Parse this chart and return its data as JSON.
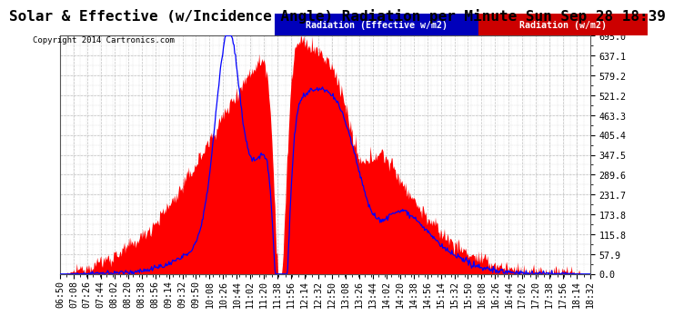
{
  "title": "Solar & Effective (w/Incidence Angle) Radiation per Minute Sun Sep 28 18:39",
  "copyright": "Copyright 2014 Cartronics.com",
  "legend_label1": "Radiation (Effective w/m2)",
  "legend_label2": "Radiation (w/m2)",
  "legend_bg1": "#0000bb",
  "legend_bg2": "#cc0000",
  "ylim": [
    0.0,
    695.0
  ],
  "yticks": [
    0.0,
    57.9,
    115.8,
    173.8,
    231.7,
    289.6,
    347.5,
    405.4,
    463.3,
    521.2,
    579.2,
    637.1,
    695.0
  ],
  "background_color": "#ffffff",
  "plot_bg_color": "#ffffff",
  "grid_color": "#bbbbbb",
  "fill_color": "#ff0000",
  "line_color": "#0000ff",
  "title_fontsize": 11.5,
  "tick_fontsize": 7.2,
  "xtick_labels": [
    "06:50",
    "07:08",
    "07:26",
    "07:44",
    "08:02",
    "08:20",
    "08:38",
    "08:56",
    "09:14",
    "09:32",
    "09:50",
    "10:08",
    "10:26",
    "10:44",
    "11:02",
    "11:20",
    "11:38",
    "11:56",
    "12:14",
    "12:32",
    "12:50",
    "13:08",
    "13:26",
    "13:44",
    "14:02",
    "14:20",
    "14:38",
    "14:56",
    "15:14",
    "15:32",
    "15:50",
    "16:08",
    "16:26",
    "16:44",
    "17:02",
    "17:20",
    "17:38",
    "17:56",
    "18:14",
    "18:32"
  ]
}
